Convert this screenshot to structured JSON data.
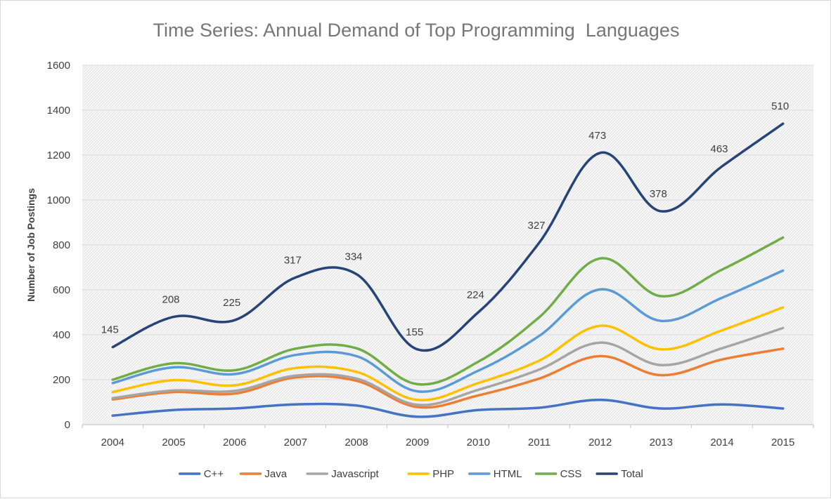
{
  "chart_data": {
    "type": "line",
    "title": "Time Series: Annual Demand of Top Programming  Languages",
    "xlabel": "",
    "ylabel": "Number of Job Postings",
    "ylim": [
      0,
      1600
    ],
    "yticks": [
      0,
      200,
      400,
      600,
      800,
      1000,
      1200,
      1400,
      1600
    ],
    "categories": [
      "2004",
      "2005",
      "2006",
      "2007",
      "2008",
      "2009",
      "2010",
      "2011",
      "2012",
      "2013",
      "2014",
      "2015"
    ],
    "grid": true,
    "legend_position": "bottom",
    "smooth": true,
    "series": [
      {
        "name": "C++",
        "color": "#4472c4",
        "values": [
          40,
          65,
          72,
          90,
          85,
          35,
          65,
          75,
          110,
          72,
          90,
          72
        ]
      },
      {
        "name": "Java",
        "color": "#ed7d31",
        "values": [
          112,
          145,
          138,
          210,
          195,
          78,
          130,
          205,
          305,
          220,
          290,
          338
        ]
      },
      {
        "name": "Javascript",
        "color": "#a5a5a5",
        "values": [
          118,
          152,
          150,
          218,
          205,
          88,
          155,
          245,
          365,
          265,
          340,
          430
        ]
      },
      {
        "name": "PHP",
        "color": "#ffc000",
        "values": [
          145,
          198,
          175,
          252,
          235,
          110,
          185,
          285,
          440,
          335,
          420,
          522
        ]
      },
      {
        "name": "HTML",
        "color": "#5b9bd5",
        "values": [
          185,
          255,
          225,
          310,
          305,
          148,
          240,
          395,
          602,
          462,
          565,
          686
        ]
      },
      {
        "name": "CSS",
        "color": "#70ad47",
        "values": [
          200,
          273,
          242,
          338,
          340,
          180,
          280,
          478,
          740,
          572,
          690,
          833
        ]
      },
      {
        "name": "Total",
        "color": "#264478",
        "values": [
          345,
          480,
          465,
          655,
          670,
          335,
          500,
          810,
          1210,
          950,
          1150,
          1340
        ],
        "data_labels": [
          "145",
          "208",
          "225",
          "317",
          "334",
          "155",
          "224",
          "327",
          "473",
          "378",
          "463",
          "510"
        ]
      }
    ]
  }
}
